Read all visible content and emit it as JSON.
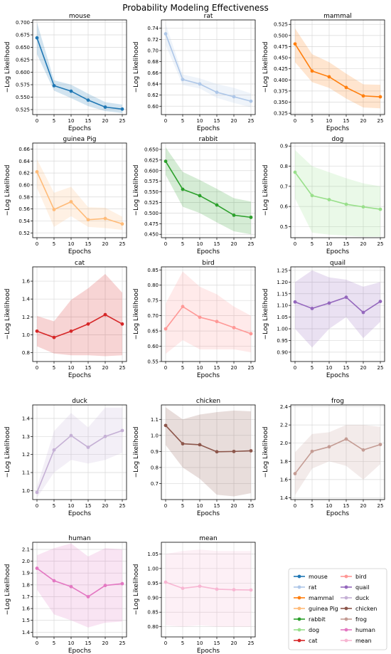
{
  "figure_title": "Probability Modeling Effectiveness",
  "chart_data": [
    {
      "type": "line",
      "title": "mouse",
      "color": "#1f77b4",
      "xlabel": "Epochs",
      "ylabel": "−Log Likelihood",
      "x": [
        0,
        5,
        10,
        15,
        20,
        25
      ],
      "values": [
        0.669,
        0.573,
        0.562,
        0.544,
        0.53,
        0.526
      ],
      "lower": [
        0.636,
        0.563,
        0.548,
        0.532,
        0.522,
        0.518
      ],
      "upper": [
        0.7,
        0.584,
        0.575,
        0.557,
        0.54,
        0.535
      ],
      "xlim": [
        -1.25,
        26.25
      ],
      "ylim": [
        0.515,
        0.705
      ],
      "yticks": [
        0.525,
        0.55,
        0.575,
        0.6,
        0.625,
        0.65,
        0.675,
        0.7
      ],
      "ydec": 3,
      "xticks": [
        0,
        5,
        10,
        15,
        20,
        25
      ],
      "grid": true
    },
    {
      "type": "line",
      "title": "rat",
      "color": "#aec7e8",
      "xlabel": "Epochs",
      "ylabel": "−Log Likelihood",
      "x": [
        0,
        5,
        10,
        15,
        20,
        25
      ],
      "values": [
        0.73,
        0.648,
        0.64,
        0.625,
        0.617,
        0.609
      ],
      "lower": [
        0.71,
        0.638,
        0.632,
        0.615,
        0.606,
        0.598
      ],
      "upper": [
        0.748,
        0.657,
        0.65,
        0.64,
        0.633,
        0.623
      ],
      "xlim": [
        -1.25,
        26.25
      ],
      "ylim": [
        0.585,
        0.755
      ],
      "yticks": [
        0.6,
        0.62,
        0.64,
        0.66,
        0.68,
        0.7,
        0.72,
        0.74
      ],
      "ydec": 2,
      "xticks": [
        0,
        5,
        10,
        15,
        20,
        25
      ],
      "grid": true
    },
    {
      "type": "line",
      "title": "mammal",
      "color": "#ff7f0e",
      "xlabel": "Epochs",
      "ylabel": "−Log Likelihood",
      "x": [
        0,
        5,
        10,
        15,
        20,
        25
      ],
      "values": [
        0.481,
        0.42,
        0.407,
        0.383,
        0.364,
        0.362
      ],
      "lower": [
        0.44,
        0.395,
        0.382,
        0.358,
        0.338,
        0.336
      ],
      "upper": [
        0.516,
        0.458,
        0.44,
        0.414,
        0.39,
        0.389
      ],
      "xlim": [
        -1.25,
        26.25
      ],
      "ylim": [
        0.322,
        0.535
      ],
      "yticks": [
        0.325,
        0.35,
        0.375,
        0.4,
        0.425,
        0.45,
        0.475,
        0.5,
        0.525
      ],
      "ydec": 3,
      "xticks": [
        0,
        5,
        10,
        15,
        20,
        25
      ],
      "grid": true
    },
    {
      "type": "line",
      "title": "guinea Pig",
      "color": "#ffbb78",
      "xlabel": "Epochs",
      "ylabel": "−Log Likelihood",
      "x": [
        0,
        5,
        10,
        15,
        20,
        25
      ],
      "values": [
        0.622,
        0.559,
        0.572,
        0.542,
        0.544,
        0.535
      ],
      "lower": [
        0.595,
        0.53,
        0.548,
        0.53,
        0.528,
        0.525
      ],
      "upper": [
        0.643,
        0.587,
        0.597,
        0.563,
        0.562,
        0.547
      ],
      "xlim": [
        -1.25,
        26.25
      ],
      "ylim": [
        0.512,
        0.67
      ],
      "yticks": [
        0.52,
        0.54,
        0.56,
        0.58,
        0.6,
        0.62,
        0.64,
        0.66
      ],
      "ydec": 2,
      "xticks": [
        0,
        5,
        10,
        15,
        20,
        25
      ],
      "grid": true
    },
    {
      "type": "line",
      "title": "rabbit",
      "color": "#2ca02c",
      "xlabel": "Epochs",
      "ylabel": "−Log Likelihood",
      "x": [
        0,
        5,
        10,
        15,
        20,
        25
      ],
      "values": [
        0.622,
        0.556,
        0.541,
        0.519,
        0.495,
        0.49
      ],
      "lower": [
        0.59,
        0.515,
        0.5,
        0.478,
        0.457,
        0.45
      ],
      "upper": [
        0.655,
        0.597,
        0.578,
        0.557,
        0.535,
        0.527
      ],
      "xlim": [
        -1.25,
        26.25
      ],
      "ylim": [
        0.442,
        0.665
      ],
      "yticks": [
        0.45,
        0.475,
        0.5,
        0.525,
        0.55,
        0.575,
        0.6,
        0.625,
        0.65
      ],
      "ydec": 3,
      "xticks": [
        0,
        5,
        10,
        15,
        20,
        25
      ],
      "grid": true
    },
    {
      "type": "line",
      "title": "dog",
      "color": "#98df8a",
      "xlabel": "Epochs",
      "ylabel": "−Log Likelihood",
      "x": [
        0,
        5,
        10,
        15,
        20,
        25
      ],
      "values": [
        0.77,
        0.654,
        0.634,
        0.611,
        0.598,
        0.586
      ],
      "lower": [
        0.64,
        0.47,
        0.46,
        0.455,
        0.45,
        0.45
      ],
      "upper": [
        0.88,
        0.8,
        0.77,
        0.74,
        0.715,
        0.7
      ],
      "xlim": [
        -1.25,
        26.25
      ],
      "ylim": [
        0.445,
        0.915
      ],
      "yticks": [
        0.5,
        0.6,
        0.7,
        0.8,
        0.9
      ],
      "ydec": 1,
      "xticks": [
        0,
        5,
        10,
        15,
        20,
        25
      ],
      "grid": true
    },
    {
      "type": "line",
      "title": "cat",
      "color": "#d62728",
      "xlabel": "Epochs",
      "ylabel": "−Log Likelihood",
      "x": [
        0,
        5,
        10,
        15,
        20,
        25
      ],
      "values": [
        1.04,
        0.97,
        1.04,
        1.12,
        1.225,
        1.12
      ],
      "lower": [
        0.87,
        0.79,
        0.77,
        0.77,
        0.76,
        0.77
      ],
      "upper": [
        1.21,
        1.15,
        1.39,
        1.52,
        1.68,
        1.47
      ],
      "xlim": [
        -1.25,
        26.25
      ],
      "ylim": [
        0.7,
        1.76
      ],
      "yticks": [
        0.8,
        1.0,
        1.2,
        1.4,
        1.6
      ],
      "ydec": 1,
      "xticks": [
        0,
        5,
        10,
        15,
        20,
        25
      ],
      "grid": true
    },
    {
      "type": "line",
      "title": "bird",
      "color": "#ff9896",
      "xlabel": "Epochs",
      "ylabel": "−Log Likelihood",
      "x": [
        0,
        5,
        10,
        15,
        20,
        25
      ],
      "values": [
        0.657,
        0.73,
        0.695,
        0.681,
        0.661,
        0.641
      ],
      "lower": [
        0.575,
        0.62,
        0.59,
        0.59,
        0.59,
        0.58
      ],
      "upper": [
        0.74,
        0.845,
        0.795,
        0.77,
        0.73,
        0.7
      ],
      "xlim": [
        -1.25,
        26.25
      ],
      "ylim": [
        0.55,
        0.86
      ],
      "yticks": [
        0.55,
        0.6,
        0.65,
        0.7,
        0.75,
        0.8,
        0.85
      ],
      "ydec": 2,
      "xticks": [
        0,
        5,
        10,
        15,
        20,
        25
      ],
      "grid": true
    },
    {
      "type": "line",
      "title": "quail",
      "color": "#9467bd",
      "xlabel": "Epochs",
      "ylabel": "−Log Likelihood",
      "x": [
        0,
        5,
        10,
        15,
        20,
        25
      ],
      "values": [
        1.115,
        1.087,
        1.11,
        1.135,
        1.07,
        1.117
      ],
      "lower": [
        1.0,
        0.92,
        1.0,
        1.05,
        0.96,
        1.03
      ],
      "upper": [
        1.2,
        1.25,
        1.22,
        1.21,
        1.18,
        1.2
      ],
      "xlim": [
        -1.25,
        26.25
      ],
      "ylim": [
        0.86,
        1.265
      ],
      "yticks": [
        0.9,
        0.95,
        1.0,
        1.05,
        1.1,
        1.15,
        1.2,
        1.25
      ],
      "ydec": 2,
      "xticks": [
        0,
        5,
        10,
        15,
        20,
        25
      ],
      "grid": true
    },
    {
      "type": "line",
      "title": "duck",
      "color": "#c5b0d5",
      "xlabel": "Epochs",
      "ylabel": "−Log Likelihood",
      "x": [
        0,
        5,
        10,
        15,
        20,
        25
      ],
      "values": [
        0.99,
        1.225,
        1.305,
        1.24,
        1.3,
        1.333
      ],
      "lower": [
        0.96,
        1.1,
        1.17,
        1.15,
        1.17,
        1.21
      ],
      "upper": [
        1.02,
        1.33,
        1.43,
        1.35,
        1.46,
        1.46
      ],
      "xlim": [
        -1.25,
        26.25
      ],
      "ylim": [
        0.95,
        1.475
      ],
      "yticks": [
        1.0,
        1.1,
        1.2,
        1.3,
        1.4
      ],
      "ydec": 1,
      "xticks": [
        0,
        5,
        10,
        15,
        20,
        25
      ],
      "grid": true
    },
    {
      "type": "line",
      "title": "chicken",
      "color": "#8c564b",
      "xlabel": "Epochs",
      "ylabel": "−Log Likelihood",
      "x": [
        0,
        5,
        10,
        15,
        20,
        25
      ],
      "values": [
        1.062,
        0.948,
        0.942,
        0.898,
        0.9,
        0.904
      ],
      "lower": [
        0.94,
        0.8,
        0.73,
        0.63,
        0.62,
        0.64
      ],
      "upper": [
        1.175,
        1.1,
        1.13,
        1.145,
        1.155,
        1.15
      ],
      "xlim": [
        -1.25,
        26.25
      ],
      "ylim": [
        0.6,
        1.19
      ],
      "yticks": [
        0.7,
        0.8,
        0.9,
        1.0,
        1.1
      ],
      "ydec": 1,
      "xticks": [
        0,
        5,
        10,
        15,
        20,
        25
      ],
      "grid": true
    },
    {
      "type": "line",
      "title": "frog",
      "color": "#c49c94",
      "xlabel": "Epochs",
      "ylabel": "−Log Likelihood",
      "x": [
        0,
        5,
        10,
        15,
        20,
        25
      ],
      "values": [
        1.665,
        1.91,
        1.96,
        2.045,
        1.925,
        1.985
      ],
      "lower": [
        1.43,
        1.72,
        1.8,
        1.75,
        1.6,
        1.77
      ],
      "upper": [
        1.9,
        2.1,
        2.12,
        2.2,
        2.2,
        2.18
      ],
      "xlim": [
        -1.25,
        26.25
      ],
      "ylim": [
        1.38,
        2.42
      ],
      "yticks": [
        1.4,
        1.6,
        1.8,
        2.0,
        2.2,
        2.4
      ],
      "ydec": 1,
      "xticks": [
        0,
        5,
        10,
        15,
        20,
        25
      ],
      "grid": true
    },
    {
      "type": "line",
      "title": "human",
      "color": "#e377c2",
      "xlabel": "Epochs",
      "ylabel": "−Log Likelihood",
      "x": [
        0,
        5,
        10,
        15,
        20,
        25
      ],
      "values": [
        1.94,
        1.835,
        1.785,
        1.7,
        1.795,
        1.81
      ],
      "lower": [
        1.76,
        1.55,
        1.5,
        1.44,
        1.48,
        1.49
      ],
      "upper": [
        2.05,
        2.11,
        2.15,
        2.04,
        2.11,
        2.1
      ],
      "xlim": [
        -1.25,
        26.25
      ],
      "ylim": [
        1.36,
        2.16
      ],
      "yticks": [
        1.4,
        1.5,
        1.6,
        1.7,
        1.8,
        1.9,
        2.0,
        2.1
      ],
      "ydec": 1,
      "xticks": [
        0,
        5,
        10,
        15,
        20,
        25
      ],
      "grid": true
    },
    {
      "type": "line",
      "title": "mean",
      "color": "#f7b6d2",
      "xlabel": "Epochs",
      "ylabel": "−Log Likelihood",
      "x": [
        0,
        5,
        10,
        15,
        20,
        25
      ],
      "values": [
        0.953,
        0.932,
        0.939,
        0.929,
        0.927,
        0.926
      ],
      "lower": [
        0.805,
        0.8,
        0.805,
        0.8,
        0.8,
        0.8
      ],
      "upper": [
        1.05,
        1.06,
        1.065,
        1.06,
        1.06,
        1.06
      ],
      "xlim": [
        -1.25,
        26.25
      ],
      "ylim": [
        0.765,
        1.09
      ],
      "yticks": [
        0.8,
        0.85,
        0.9,
        0.95,
        1.0,
        1.05
      ],
      "ydec": 2,
      "xticks": [
        0,
        5,
        10,
        15,
        20,
        25
      ],
      "grid": true
    }
  ],
  "legend": {
    "placement": "bottom-right",
    "entries": [
      {
        "label": "mouse",
        "color": "#1f77b4"
      },
      {
        "label": "rat",
        "color": "#aec7e8"
      },
      {
        "label": "mammal",
        "color": "#ff7f0e"
      },
      {
        "label": "guinea Pig",
        "color": "#ffbb78"
      },
      {
        "label": "rabbit",
        "color": "#2ca02c"
      },
      {
        "label": "dog",
        "color": "#98df8a"
      },
      {
        "label": "cat",
        "color": "#d62728"
      },
      {
        "label": "bird",
        "color": "#ff9896"
      },
      {
        "label": "quail",
        "color": "#9467bd"
      },
      {
        "label": "duck",
        "color": "#c5b0d5"
      },
      {
        "label": "chicken",
        "color": "#8c564b"
      },
      {
        "label": "frog",
        "color": "#c49c94"
      },
      {
        "label": "human",
        "color": "#e377c2"
      },
      {
        "label": "mean",
        "color": "#f7b6d2"
      }
    ]
  }
}
